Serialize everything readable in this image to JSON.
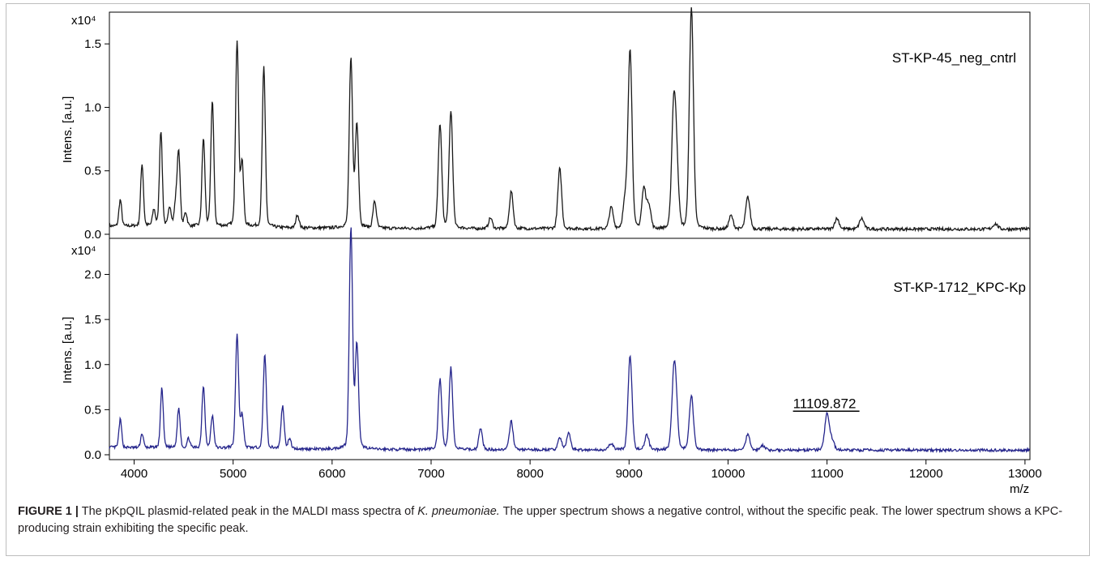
{
  "caption": {
    "label": "FIGURE 1 |",
    "text_before_species": " The pKpQIL plasmid-related peak in the MALDI mass spectra of ",
    "species": "K. pneumoniae.",
    "text_after_species": " The upper spectrum shows a negative control, without the specific peak. The lower spectrum shows a KPC-producing strain exhibiting the specific peak."
  },
  "chart_data": [
    {
      "type": "line",
      "title": "ST-KP-45_neg_cntrl",
      "ylabel": "Intens. [a.u.]",
      "y_multiplier": "x10⁴",
      "xlim": [
        3750,
        13050
      ],
      "ylim": [
        0,
        1.75
      ],
      "yticks": [
        0.0,
        0.5,
        1.0,
        1.5
      ],
      "ytick_labels": [
        "0.0",
        "0.5",
        "1.0",
        "1.5"
      ],
      "line_color": "#1a1a1a",
      "baseline": 0.04,
      "series": [
        {
          "peaks": [
            [
              3860,
              0.2
            ],
            [
              4080,
              0.47
            ],
            [
              4200,
              0.12
            ],
            [
              4270,
              0.72
            ],
            [
              4360,
              0.14
            ],
            [
              4420,
              0.17
            ],
            [
              4450,
              0.56
            ],
            [
              4520,
              0.1
            ],
            [
              4700,
              0.66
            ],
            [
              4790,
              0.95
            ],
            [
              5040,
              1.4
            ],
            [
              5090,
              0.48
            ],
            [
              5310,
              1.2
            ],
            [
              5650,
              0.1
            ],
            [
              6190,
              1.27
            ],
            [
              6250,
              0.78
            ],
            [
              6430,
              0.2
            ],
            [
              7090,
              0.78
            ],
            [
              7200,
              0.88
            ],
            [
              7600,
              0.08
            ],
            [
              7810,
              0.28
            ],
            [
              8300,
              0.45
            ],
            [
              8820,
              0.16
            ],
            [
              8960,
              0.2
            ],
            [
              9010,
              1.35
            ],
            [
              9150,
              0.3
            ],
            [
              9200,
              0.18
            ],
            [
              9450,
              0.85
            ],
            [
              9480,
              0.45
            ],
            [
              9630,
              1.66
            ],
            [
              10030,
              0.1
            ],
            [
              10200,
              0.24
            ],
            [
              11100,
              0.08
            ],
            [
              11350,
              0.08
            ],
            [
              12700,
              0.04
            ]
          ]
        }
      ]
    },
    {
      "type": "line",
      "title": "ST-KP-1712_KPC-Kp",
      "ylabel": "Intens. [a.u.]",
      "xlabel": "m/z",
      "y_multiplier": "x10⁴",
      "xlim": [
        3750,
        13050
      ],
      "ylim": [
        0,
        2.4
      ],
      "yticks": [
        0.0,
        0.5,
        1.0,
        1.5,
        2.0
      ],
      "ytick_labels": [
        "0.0",
        "0.5",
        "1.0",
        "1.5",
        "2.0"
      ],
      "xticks": [
        4000,
        5000,
        6000,
        7000,
        8000,
        9000,
        10000,
        11000,
        12000,
        13000
      ],
      "xtick_labels": [
        "4000",
        "5000",
        "6000",
        "7000",
        "8000",
        "9000",
        "10000",
        "11000",
        "12000",
        "13000"
      ],
      "line_color": "#26268c",
      "baseline": 0.05,
      "annotation": {
        "text": "11109.872",
        "x": 11000,
        "y": 0.42
      },
      "series": [
        {
          "peaks": [
            [
              3860,
              0.3
            ],
            [
              4080,
              0.15
            ],
            [
              4280,
              0.63
            ],
            [
              4450,
              0.42
            ],
            [
              4550,
              0.1
            ],
            [
              4700,
              0.66
            ],
            [
              4790,
              0.34
            ],
            [
              5040,
              1.21
            ],
            [
              5090,
              0.35
            ],
            [
              5320,
              1.0
            ],
            [
              5500,
              0.45
            ],
            [
              5570,
              0.1
            ],
            [
              6190,
              2.33
            ],
            [
              6250,
              1.1
            ],
            [
              7090,
              0.74
            ],
            [
              7200,
              0.86
            ],
            [
              7500,
              0.22
            ],
            [
              7810,
              0.3
            ],
            [
              8300,
              0.13
            ],
            [
              8390,
              0.18
            ],
            [
              8820,
              0.07
            ],
            [
              9010,
              0.99
            ],
            [
              9180,
              0.16
            ],
            [
              9450,
              0.58
            ],
            [
              9470,
              0.5
            ],
            [
              9630,
              0.57
            ],
            [
              10200,
              0.17
            ],
            [
              10350,
              0.05
            ],
            [
              11000,
              0.38
            ],
            [
              11050,
              0.1
            ]
          ]
        }
      ]
    }
  ]
}
